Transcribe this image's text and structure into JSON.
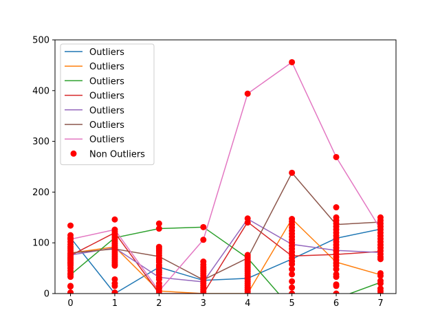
{
  "chart_data": {
    "type": "line",
    "x": [
      0,
      1,
      2,
      3,
      4,
      5,
      6,
      7
    ],
    "xlim": [
      -0.35,
      7.35
    ],
    "ylim": [
      0,
      500
    ],
    "x_ticks": [
      0,
      1,
      2,
      3,
      4,
      5,
      6,
      7
    ],
    "y_ticks": [
      0,
      100,
      200,
      300,
      400,
      500
    ],
    "grid": false,
    "legend_position": "upper-left",
    "series": [
      {
        "name": "Outliers",
        "color": "#1f77b4",
        "values": [
          110,
          0,
          52,
          26,
          30,
          68,
          109,
          127
        ]
      },
      {
        "name": "Outliers",
        "color": "#ff7f0e",
        "values": [
          80,
          92,
          5,
          0,
          0,
          147,
          62,
          37
        ]
      },
      {
        "name": "Outliers",
        "color": "#2ca02c",
        "values": [
          37,
          110,
          128,
          131,
          70,
          -30,
          -10,
          22
        ]
      },
      {
        "name": "Outliers",
        "color": "#d62728",
        "values": [
          75,
          120,
          0,
          0,
          141,
          74,
          77,
          83
        ]
      },
      {
        "name": "Outliers",
        "color": "#9467bd",
        "values": [
          76,
          90,
          32,
          23,
          147,
          97,
          85,
          81
        ]
      },
      {
        "name": "Outliers",
        "color": "#8c564b",
        "values": [
          80,
          88,
          73,
          27,
          70,
          238,
          136,
          141
        ]
      },
      {
        "name": "Outliers",
        "color": "#e377c2",
        "values": [
          107,
          126,
          5,
          106,
          394,
          456,
          269,
          127
        ]
      }
    ],
    "scatter": {
      "name": "Non Outliers",
      "color": "#ff0000",
      "points": [
        [
          0,
          0
        ],
        [
          0,
          2
        ],
        [
          0,
          14
        ],
        [
          0,
          15
        ],
        [
          0,
          33
        ],
        [
          0,
          37
        ],
        [
          0,
          40
        ],
        [
          0,
          45
        ],
        [
          0,
          50
        ],
        [
          0,
          55
        ],
        [
          0,
          58
        ],
        [
          0,
          60
        ],
        [
          0,
          62
        ],
        [
          0,
          65
        ],
        [
          0,
          68
        ],
        [
          0,
          70
        ],
        [
          0,
          72
        ],
        [
          0,
          75
        ],
        [
          0,
          78
        ],
        [
          0,
          80
        ],
        [
          0,
          84
        ],
        [
          0,
          88
        ],
        [
          0,
          92
        ],
        [
          0,
          97
        ],
        [
          0,
          102
        ],
        [
          0,
          107
        ],
        [
          0,
          110
        ],
        [
          0,
          115
        ],
        [
          0,
          134
        ],
        [
          1,
          2
        ],
        [
          1,
          15
        ],
        [
          1,
          20
        ],
        [
          1,
          28
        ],
        [
          1,
          55
        ],
        [
          1,
          58
        ],
        [
          1,
          62
        ],
        [
          1,
          66
        ],
        [
          1,
          70
        ],
        [
          1,
          74
        ],
        [
          1,
          78
        ],
        [
          1,
          82
        ],
        [
          1,
          86
        ],
        [
          1,
          90
        ],
        [
          1,
          94
        ],
        [
          1,
          98
        ],
        [
          1,
          102
        ],
        [
          1,
          106
        ],
        [
          1,
          110
        ],
        [
          1,
          114
        ],
        [
          1,
          118
        ],
        [
          1,
          122
        ],
        [
          1,
          126
        ],
        [
          1,
          146
        ],
        [
          2,
          0
        ],
        [
          2,
          5
        ],
        [
          2,
          10
        ],
        [
          2,
          15
        ],
        [
          2,
          20
        ],
        [
          2,
          28
        ],
        [
          2,
          32
        ],
        [
          2,
          38
        ],
        [
          2,
          42
        ],
        [
          2,
          46
        ],
        [
          2,
          52
        ],
        [
          2,
          56
        ],
        [
          2,
          62
        ],
        [
          2,
          66
        ],
        [
          2,
          70
        ],
        [
          2,
          75
        ],
        [
          2,
          80
        ],
        [
          2,
          84
        ],
        [
          2,
          88
        ],
        [
          2,
          92
        ],
        [
          2,
          128
        ],
        [
          2,
          138
        ],
        [
          3,
          0
        ],
        [
          3,
          4
        ],
        [
          3,
          8
        ],
        [
          3,
          12
        ],
        [
          3,
          16
        ],
        [
          3,
          20
        ],
        [
          3,
          24
        ],
        [
          3,
          28
        ],
        [
          3,
          32
        ],
        [
          3,
          36
        ],
        [
          3,
          40
        ],
        [
          3,
          44
        ],
        [
          3,
          48
        ],
        [
          3,
          52
        ],
        [
          3,
          57
        ],
        [
          3,
          63
        ],
        [
          3,
          106
        ],
        [
          3,
          131
        ],
        [
          4,
          0
        ],
        [
          4,
          4
        ],
        [
          4,
          8
        ],
        [
          4,
          12
        ],
        [
          4,
          16
        ],
        [
          4,
          20
        ],
        [
          4,
          24
        ],
        [
          4,
          28
        ],
        [
          4,
          32
        ],
        [
          4,
          36
        ],
        [
          4,
          40
        ],
        [
          4,
          44
        ],
        [
          4,
          48
        ],
        [
          4,
          52
        ],
        [
          4,
          56
        ],
        [
          4,
          60
        ],
        [
          4,
          64
        ],
        [
          4,
          68
        ],
        [
          4,
          72
        ],
        [
          4,
          76
        ],
        [
          4,
          140
        ],
        [
          4,
          148
        ],
        [
          4,
          394
        ],
        [
          5,
          0
        ],
        [
          5,
          12
        ],
        [
          5,
          24
        ],
        [
          5,
          38
        ],
        [
          5,
          48
        ],
        [
          5,
          58
        ],
        [
          5,
          64
        ],
        [
          5,
          70
        ],
        [
          5,
          76
        ],
        [
          5,
          82
        ],
        [
          5,
          88
        ],
        [
          5,
          94
        ],
        [
          5,
          100
        ],
        [
          5,
          106
        ],
        [
          5,
          112
        ],
        [
          5,
          118
        ],
        [
          5,
          124
        ],
        [
          5,
          130
        ],
        [
          5,
          136
        ],
        [
          5,
          142
        ],
        [
          5,
          147
        ],
        [
          5,
          238
        ],
        [
          5,
          456
        ],
        [
          6,
          0
        ],
        [
          6,
          15
        ],
        [
          6,
          18
        ],
        [
          6,
          33
        ],
        [
          6,
          38
        ],
        [
          6,
          48
        ],
        [
          6,
          55
        ],
        [
          6,
          60
        ],
        [
          6,
          66
        ],
        [
          6,
          72
        ],
        [
          6,
          78
        ],
        [
          6,
          84
        ],
        [
          6,
          90
        ],
        [
          6,
          96
        ],
        [
          6,
          102
        ],
        [
          6,
          108
        ],
        [
          6,
          114
        ],
        [
          6,
          120
        ],
        [
          6,
          126
        ],
        [
          6,
          132
        ],
        [
          6,
          138
        ],
        [
          6,
          144
        ],
        [
          6,
          150
        ],
        [
          6,
          170
        ],
        [
          6,
          269
        ],
        [
          7,
          0
        ],
        [
          7,
          5
        ],
        [
          7,
          10
        ],
        [
          7,
          20
        ],
        [
          7,
          25
        ],
        [
          7,
          35
        ],
        [
          7,
          40
        ],
        [
          7,
          68
        ],
        [
          7,
          72
        ],
        [
          7,
          78
        ],
        [
          7,
          84
        ],
        [
          7,
          90
        ],
        [
          7,
          96
        ],
        [
          7,
          102
        ],
        [
          7,
          108
        ],
        [
          7,
          114
        ],
        [
          7,
          120
        ],
        [
          7,
          126
        ],
        [
          7,
          132
        ],
        [
          7,
          138
        ],
        [
          7,
          144
        ],
        [
          7,
          150
        ]
      ]
    }
  }
}
